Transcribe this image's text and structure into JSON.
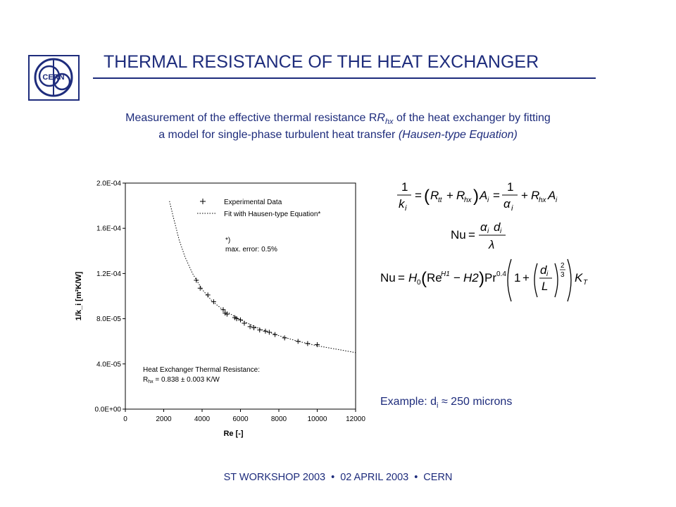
{
  "slide": {
    "title": "THERMAL RESISTANCE OF THE HEAT EXCHANGER",
    "logo_text": "CERN",
    "subtitle_line1_a": "Measurement of the effective thermal resistance R",
    "subtitle_line1_sub": "hx",
    "subtitle_line1_b": " of the heat exchanger by fitting",
    "subtitle_line2_a": "a model for single-phase turbulent heat transfer ",
    "subtitle_line2_b": "(Hausen-type Equation)",
    "example_prefix": "Example: d",
    "example_sub": "i",
    "example_suffix": " ≈ 250 microns",
    "footer": [
      "ST WORKSHOP 2003",
      "02 APRIL 2003",
      "CERN"
    ],
    "accent_color": "#1e2c7c"
  },
  "chart_data": {
    "type": "scatter",
    "xlabel": "Re  [-]",
    "ylabel": "1/k_i  [m²K/W]",
    "xlim": [
      0,
      12000
    ],
    "ylim": [
      0,
      0.0002
    ],
    "x_ticks": [
      "0",
      "2000",
      "4000",
      "6000",
      "8000",
      "10000",
      "12000"
    ],
    "y_ticks": [
      "0.0E+00",
      "4.0E-05",
      "8.0E-05",
      "1.2E-04",
      "1.6E-04",
      "2.0E-04"
    ],
    "legend": {
      "position": "top-right",
      "entries": [
        "Experimental Data",
        "Fit with Hausen-type Equation*"
      ]
    },
    "annotation_note": [
      "*)",
      "max. error: 0.5%"
    ],
    "annotation_result": [
      "Heat Exchanger Thermal Resistance:",
      "R",
      "hx",
      " = 0.838 ± 0.003 K/W"
    ],
    "series": [
      {
        "name": "Experimental Data",
        "marker": "+",
        "points": [
          [
            3700,
            0.000114
          ],
          [
            3900,
            0.000107
          ],
          [
            4300,
            0.000101
          ],
          [
            4600,
            9.5e-05
          ],
          [
            5100,
            8.8e-05
          ],
          [
            5200,
            8.5e-05
          ],
          [
            5300,
            8.4e-05
          ],
          [
            5700,
            8.1e-05
          ],
          [
            5800,
            8e-05
          ],
          [
            6000,
            7.9e-05
          ],
          [
            6200,
            7.6e-05
          ],
          [
            6500,
            7.3e-05
          ],
          [
            6700,
            7.2e-05
          ],
          [
            7000,
            7e-05
          ],
          [
            7300,
            6.9e-05
          ],
          [
            7500,
            6.8e-05
          ],
          [
            7800,
            6.6e-05
          ],
          [
            8300,
            6.3e-05
          ],
          [
            9000,
            6e-05
          ],
          [
            9500,
            5.8e-05
          ],
          [
            10000,
            5.7e-05
          ]
        ]
      },
      {
        "name": "Fit with Hausen-type Equation*",
        "style": "dotted",
        "points": [
          [
            2300,
            0.000184
          ],
          [
            2500,
            0.00017
          ],
          [
            2800,
            0.00015
          ],
          [
            3100,
            0.000135
          ],
          [
            3500,
            0.00012
          ],
          [
            4000,
            0.000106
          ],
          [
            4500,
            9.6e-05
          ],
          [
            5000,
            8.9e-05
          ],
          [
            5500,
            8.4e-05
          ],
          [
            6000,
            7.9e-05
          ],
          [
            7000,
            7.1e-05
          ],
          [
            8000,
            6.5e-05
          ],
          [
            9000,
            6e-05
          ],
          [
            10000,
            5.6e-05
          ],
          [
            11000,
            5.3e-05
          ],
          [
            12000,
            5e-05
          ]
        ]
      }
    ]
  }
}
